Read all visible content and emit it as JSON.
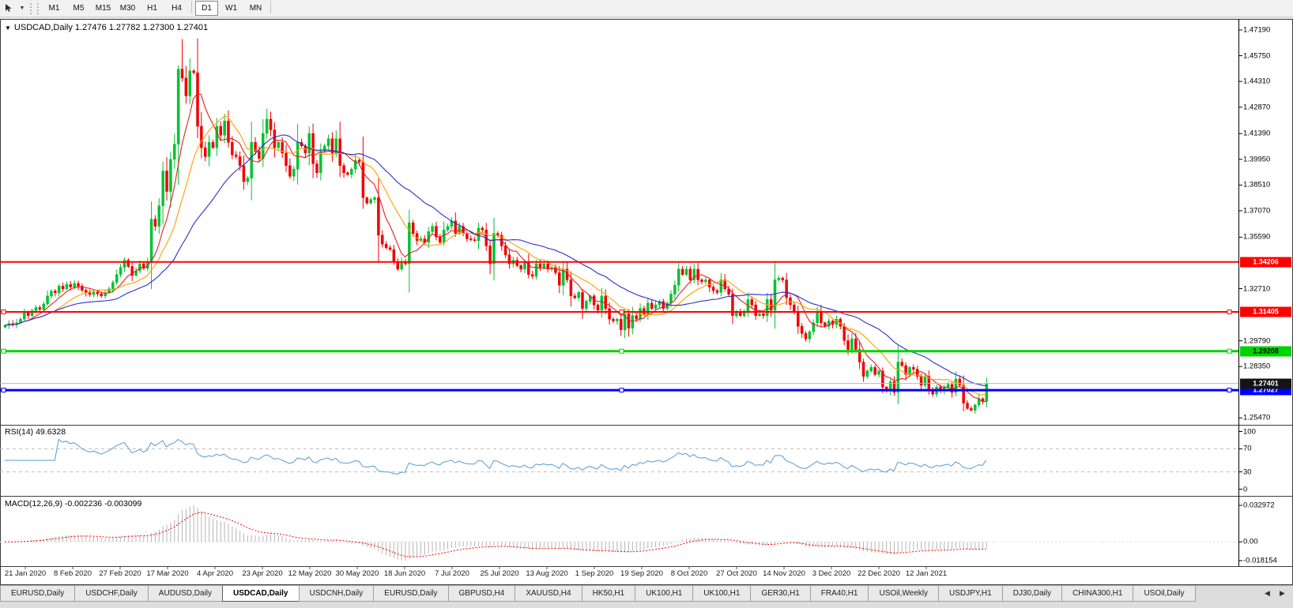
{
  "toolbar": {
    "timeframes": [
      {
        "label": "M1",
        "active": false
      },
      {
        "label": "M5",
        "active": false
      },
      {
        "label": "M15",
        "active": false
      },
      {
        "label": "M30",
        "active": false
      },
      {
        "label": "H1",
        "active": false
      },
      {
        "label": "H4",
        "active": false
      },
      {
        "label": "D1",
        "active": true
      },
      {
        "label": "W1",
        "active": false
      },
      {
        "label": "MN",
        "active": false
      }
    ],
    "dropdown_glyph": "▼"
  },
  "chart": {
    "collapse_glyph": "▼",
    "title_text": "USDCAD,Daily 1.27476 1.27782 1.27300 1.27401",
    "price_axis_ticks": [
      {
        "label": "1.47190",
        "price": 1.4719
      },
      {
        "label": "1.45750",
        "price": 1.4575
      },
      {
        "label": "1.44310",
        "price": 1.4431
      },
      {
        "label": "1.42870",
        "price": 1.4287
      },
      {
        "label": "1.41390",
        "price": 1.4139
      },
      {
        "label": "1.39950",
        "price": 1.3995
      },
      {
        "label": "1.38510",
        "price": 1.3851
      },
      {
        "label": "1.37070",
        "price": 1.3707
      },
      {
        "label": "1.35590",
        "price": 1.3559
      },
      {
        "label": "1.32710",
        "price": 1.3271
      },
      {
        "label": "1.29790",
        "price": 1.2979
      },
      {
        "label": "1.28350",
        "price": 1.2835
      },
      {
        "label": "1.25470",
        "price": 1.2547
      }
    ],
    "hlines": [
      {
        "price": 1.34206,
        "label": "1.34206",
        "color": "#ff0000",
        "thickness": 2,
        "selected": false,
        "label_text_color": "#ffffff"
      },
      {
        "price": 1.31405,
        "label": "1.31405",
        "color": "#ff0000",
        "thickness": 2,
        "selected": true,
        "label_text_color": "#ffffff"
      },
      {
        "price": 1.29208,
        "label": "1.29208",
        "color": "#00d300",
        "thickness": 3,
        "selected": true,
        "label_text_color": "#000000"
      },
      {
        "price": 1.27027,
        "label": "1.27027",
        "color": "#0000ff",
        "thickness": 3,
        "selected": true,
        "label_text_color": "#ffffff"
      }
    ],
    "bid": {
      "price": 1.27401,
      "label": "1.27401",
      "line_color": "#b9b9b9",
      "label_bg": "#141414",
      "label_text_color": "#ffffff"
    }
  },
  "rsi": {
    "label": "RSI(14) 49.6328",
    "period": 14,
    "current_value": 49.6328,
    "ticks": [
      {
        "label": "100",
        "value": 100
      },
      {
        "label": "70",
        "value": 70
      },
      {
        "label": "30",
        "value": 30
      },
      {
        "label": "0",
        "value": 0
      }
    ],
    "dashed_levels": [
      70,
      30
    ],
    "line_color": "#559bd6"
  },
  "macd": {
    "label": "MACD(12,26,9) -0.002236 -0.003099",
    "fast": 12,
    "slow": 26,
    "signal": 9,
    "main_value": -0.002236,
    "signal_value": -0.003099,
    "ticks": {
      "max": "0.032972",
      "zero": "0.00",
      "min": "-0.018154"
    },
    "hist_color": "#b4b4b4",
    "signal_color": "#ff0000"
  },
  "date_axis": {
    "labels": [
      "21 Jan 2020",
      "8 Feb 2020",
      "27 Feb 2020",
      "17 Mar 2020",
      "4 Apr 2020",
      "23 Apr 2020",
      "12 May 2020",
      "30 May 2020",
      "18 Jun 2020",
      "7 Jul 2020",
      "25 Jul 2020",
      "13 Aug 2020",
      "1 Sep 2020",
      "19 Sep 2020",
      "8 Oct 2020",
      "27 Oct 2020",
      "14 Nov 2020",
      "3 Dec 2020",
      "22 Dec 2020",
      "12 Jan 2021"
    ]
  },
  "tabs": {
    "items": [
      {
        "label": "EURUSD,Daily",
        "active": false
      },
      {
        "label": "USDCHF,Daily",
        "active": false
      },
      {
        "label": "AUDUSD,Daily",
        "active": false
      },
      {
        "label": "USDCAD,Daily",
        "active": true
      },
      {
        "label": "USDCNH,Daily",
        "active": false
      },
      {
        "label": "EURUSD,Daily",
        "active": false
      },
      {
        "label": "GBPUSD,H4",
        "active": false
      },
      {
        "label": "XAUUSD,H4",
        "active": false
      },
      {
        "label": "HK50,H1",
        "active": false
      },
      {
        "label": "UK100,H1",
        "active": false
      },
      {
        "label": "UK100,H1",
        "active": false
      },
      {
        "label": "GER30,H1",
        "active": false
      },
      {
        "label": "FRA40,H1",
        "active": false
      },
      {
        "label": "USOil,Weekly",
        "active": false
      },
      {
        "label": "USDJPY,H1",
        "active": false
      },
      {
        "label": "DJ30,Daily",
        "active": false
      },
      {
        "label": "CHINA300,H1",
        "active": false
      },
      {
        "label": "USOil,Daily",
        "active": false
      }
    ],
    "scroll_left_glyph": "◀",
    "scroll_right_glyph": "▶"
  },
  "chart_data": {
    "type": "candlestick",
    "symbol": "USDCAD",
    "timeframe": "Daily",
    "title": "USDCAD,Daily 1.27476 1.27782 1.27300 1.27401",
    "y_axis_range": [
      1.2547,
      1.4719
    ],
    "x_axis_labels": [
      "21 Jan 2020",
      "8 Feb 2020",
      "27 Feb 2020",
      "17 Mar 2020",
      "4 Apr 2020",
      "23 Apr 2020",
      "12 May 2020",
      "30 May 2020",
      "18 Jun 2020",
      "7 Jul 2020",
      "25 Jul 2020",
      "13 Aug 2020",
      "1 Sep 2020",
      "19 Sep 2020",
      "8 Oct 2020",
      "27 Oct 2020",
      "14 Nov 2020",
      "3 Dec 2020",
      "22 Dec 2020",
      "12 Jan 2021"
    ],
    "grid": false,
    "candle_up_color": "#00c233",
    "candle_down_color": "#f20000",
    "ma_overlays": [
      {
        "period": 7,
        "color": "#e62020"
      },
      {
        "period": 14,
        "color": "#ff9e00"
      },
      {
        "period": 30,
        "color": "#2d2dcc"
      }
    ],
    "closes": [
      1.3065,
      1.3075,
      1.3068,
      1.308,
      1.31,
      1.3135,
      1.312,
      1.3148,
      1.3165,
      1.3155,
      1.3185,
      1.323,
      1.3258,
      1.3248,
      1.3285,
      1.327,
      1.3295,
      1.328,
      1.33,
      1.3285,
      1.3262,
      1.3248,
      1.3238,
      1.3252,
      1.3242,
      1.323,
      1.3248,
      1.327,
      1.3305,
      1.335,
      1.339,
      1.343,
      1.3395,
      1.3345,
      1.337,
      1.341,
      1.3385,
      1.342,
      1.366,
      1.362,
      1.3735,
      1.393,
      1.3815,
      1.3995,
      1.408,
      1.45,
      1.445,
      1.435,
      1.449,
      1.448,
      1.418,
      1.406,
      1.401,
      1.409,
      1.406,
      1.418,
      1.413,
      1.421,
      1.409,
      1.402,
      1.401,
      1.396,
      1.387,
      1.389,
      1.409,
      1.404,
      1.4,
      1.414,
      1.422,
      1.416,
      1.406,
      1.409,
      1.403,
      1.396,
      1.39,
      1.394,
      1.409,
      1.407,
      1.403,
      1.414,
      1.397,
      1.392,
      1.404,
      1.407,
      1.411,
      1.403,
      1.411,
      1.396,
      1.392,
      1.391,
      1.394,
      1.399,
      1.398,
      1.378,
      1.375,
      1.377,
      1.378,
      1.357,
      1.352,
      1.35,
      1.349,
      1.342,
      1.338,
      1.342,
      1.341,
      1.364,
      1.358,
      1.354,
      1.355,
      1.353,
      1.359,
      1.362,
      1.356,
      1.353,
      1.36,
      1.362,
      1.365,
      1.358,
      1.362,
      1.358,
      1.355,
      1.3545,
      1.354,
      1.361,
      1.36,
      1.351,
      1.341,
      1.358,
      1.357,
      1.351,
      1.346,
      1.341,
      1.343,
      1.34,
      1.338,
      1.342,
      1.335,
      1.334,
      1.341,
      1.339,
      1.341,
      1.338,
      1.339,
      1.336,
      1.329,
      1.338,
      1.332,
      1.323,
      1.322,
      1.325,
      1.316,
      1.32,
      1.323,
      1.318,
      1.315,
      1.323,
      1.316,
      1.31,
      1.309,
      1.31,
      1.304,
      1.313,
      1.305,
      1.312,
      1.31,
      1.316,
      1.313,
      1.319,
      1.316,
      1.318,
      1.32,
      1.316,
      1.319,
      1.324,
      1.329,
      1.338,
      1.335,
      1.338,
      1.332,
      1.338,
      1.332,
      1.331,
      1.332,
      1.328,
      1.326,
      1.325,
      1.332,
      1.327,
      1.324,
      1.312,
      1.314,
      1.312,
      1.314,
      1.321,
      1.318,
      1.312,
      1.313,
      1.312,
      1.321,
      1.315,
      1.332,
      1.333,
      1.332,
      1.322,
      1.318,
      1.314,
      1.306,
      1.302,
      1.299,
      1.303,
      1.308,
      1.314,
      1.308,
      1.306,
      1.309,
      1.307,
      1.31,
      1.306,
      1.298,
      1.293,
      1.299,
      1.293,
      1.286,
      1.278,
      1.281,
      1.283,
      1.279,
      1.281,
      1.272,
      1.27,
      1.275,
      1.269,
      1.286,
      1.284,
      1.279,
      1.283,
      1.282,
      1.278,
      1.273,
      1.278,
      1.27,
      1.268,
      1.272,
      1.27,
      1.272,
      1.2735,
      1.269,
      1.2765,
      1.273,
      1.263,
      1.26,
      1.259,
      1.262,
      1.2655,
      1.264,
      1.274
    ],
    "wick_overrides": {
      "38": {
        "h": 1.3758
      },
      "45": {
        "h": 1.452
      },
      "46": {
        "h": 1.4668
      },
      "161": {
        "l": 1.2994
      },
      "251": {
        "l": 1.2585
      }
    },
    "horizontal_lines": [
      {
        "price": 1.34206,
        "color": "#ff0000"
      },
      {
        "price": 1.31405,
        "color": "#ff0000"
      },
      {
        "price": 1.29208,
        "color": "#00d300"
      },
      {
        "price": 1.27027,
        "color": "#0000ff"
      }
    ],
    "current_bid": 1.27401
  }
}
